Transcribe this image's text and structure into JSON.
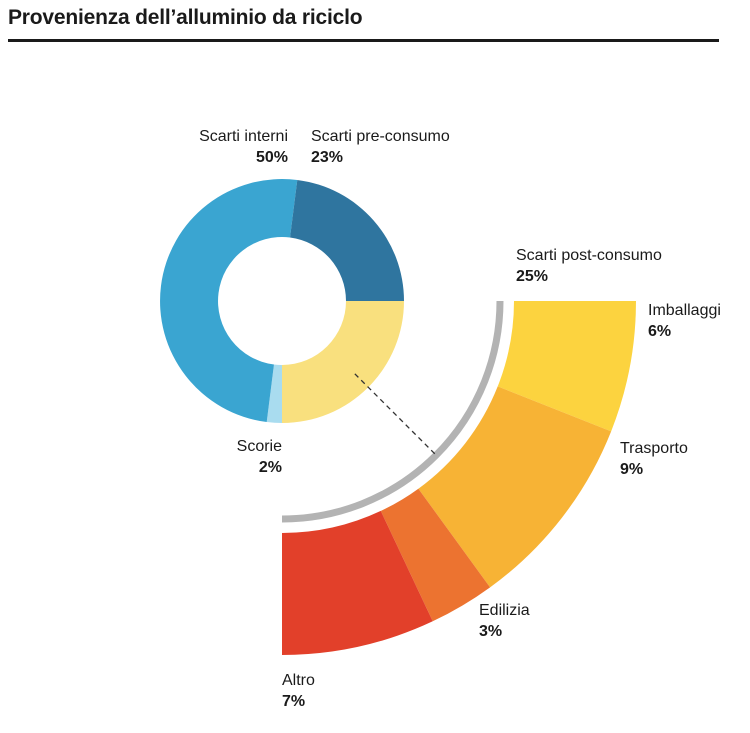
{
  "chart_data": [
    {
      "type": "pie",
      "title": "Provenienza dell’alluminio da riciclo",
      "slices": [
        {
          "label": "Scarti interni",
          "value": 50,
          "value_label": "50%",
          "color": "#3aa5d1"
        },
        {
          "label": "Scarti pre-consumo",
          "value": 23,
          "value_label": "23%",
          "color": "#2f759f"
        },
        {
          "label": "Scarti post-consumo",
          "value": 25,
          "value_label": "25%",
          "color": "#f9e07e"
        },
        {
          "label": "Scorie",
          "value": 2,
          "value_label": "2%",
          "color": "#a9dcef"
        }
      ]
    },
    {
      "type": "pie",
      "title": "",
      "subset_of": "Scarti post-consumo",
      "slices": [
        {
          "label": "Imballaggi",
          "value": 6,
          "value_label": "6%",
          "color": "#fcd33f"
        },
        {
          "label": "Trasporto",
          "value": 9,
          "value_label": "9%",
          "color": "#f7b335"
        },
        {
          "label": "Edilizia",
          "value": 3,
          "value_label": "3%",
          "color": "#ec7330"
        },
        {
          "label": "Altro",
          "value": 7,
          "value_label": "7%",
          "color": "#e2402a"
        }
      ]
    }
  ]
}
